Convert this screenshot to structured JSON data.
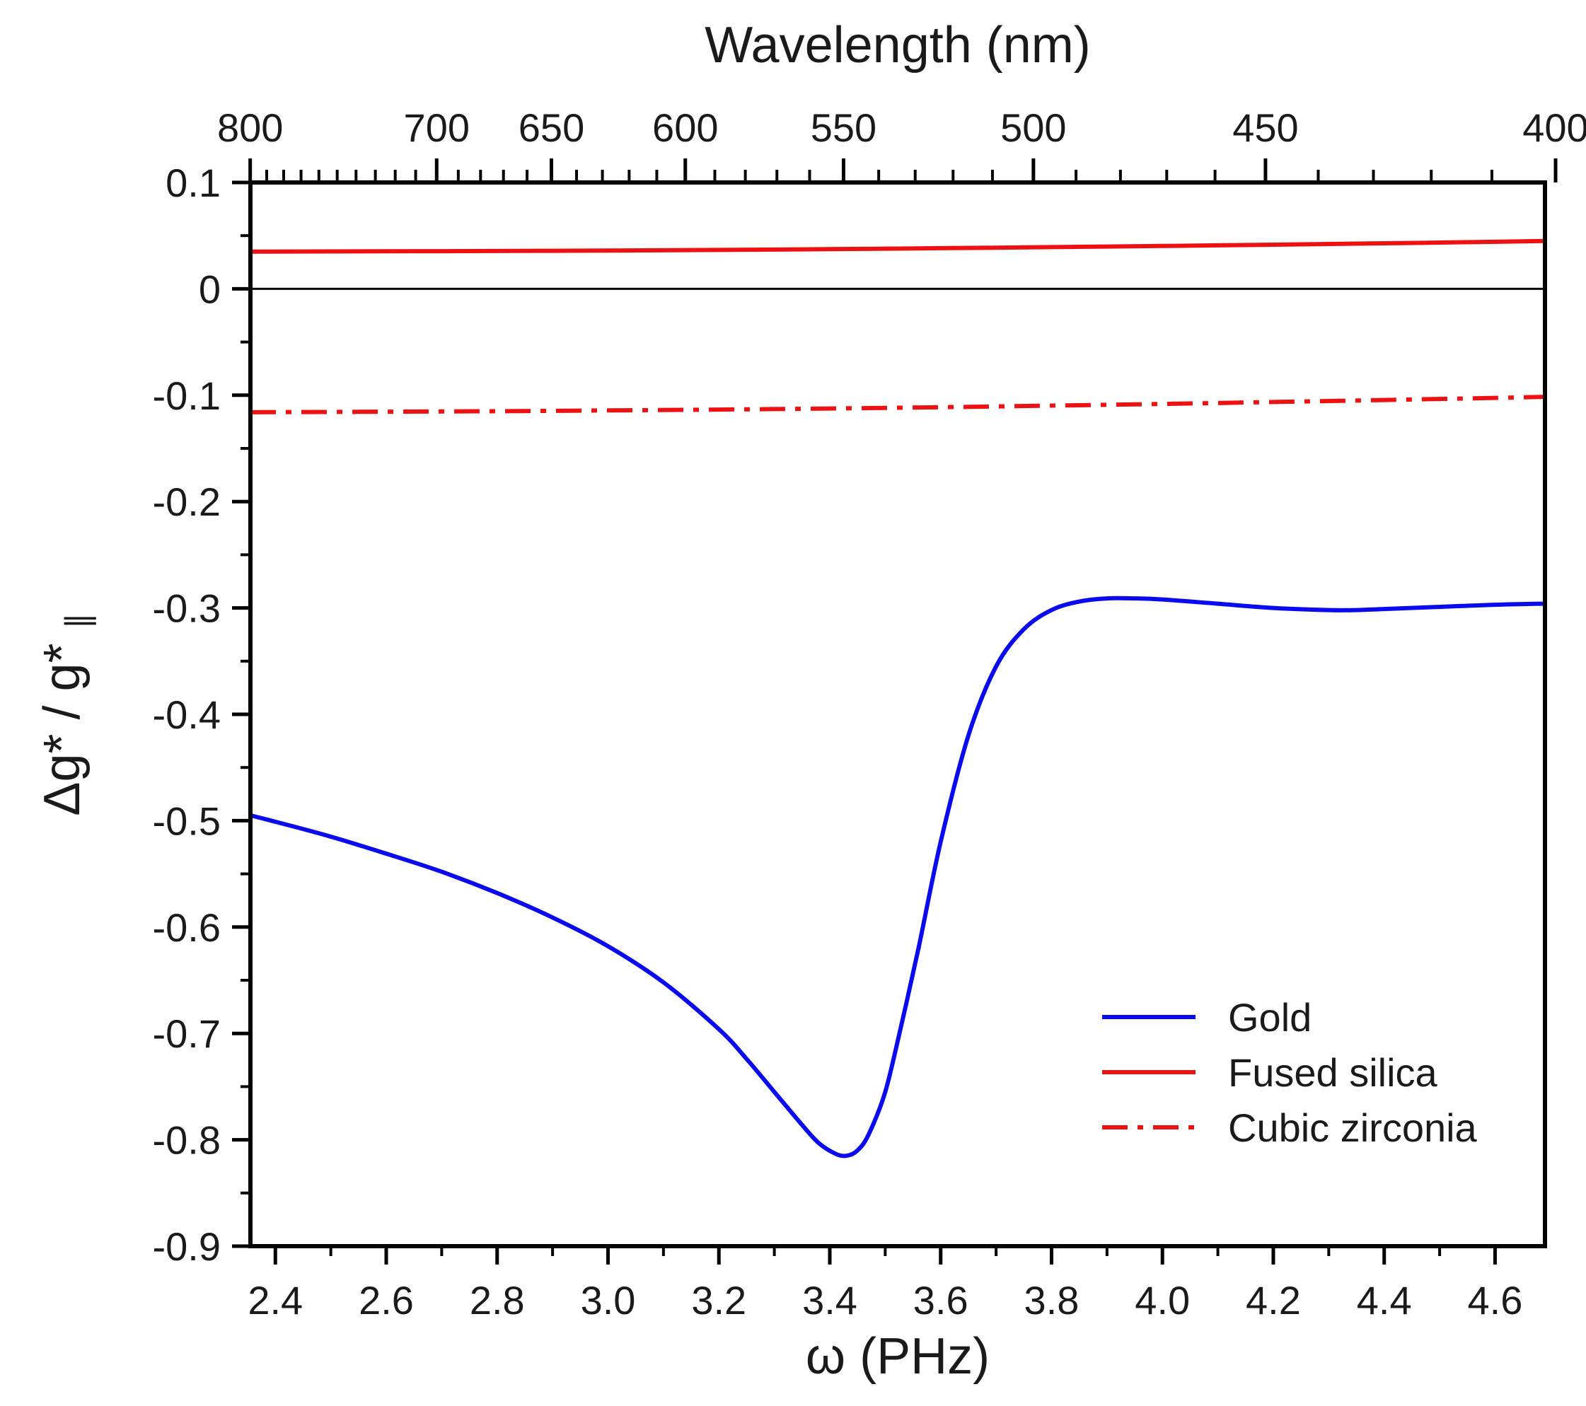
{
  "chart_data": {
    "type": "line",
    "title": "",
    "xlabel": "ω (PHz)",
    "ylabel": "Δg* / g*",
    "ylabel_subscript": "∥",
    "top_xlabel": "Wavelength (nm)",
    "xlim": [
      2.355,
      4.69
    ],
    "ylim": [
      -0.9,
      0.1
    ],
    "x_ticks": [
      "2.4",
      "2.6",
      "2.8",
      "3.0",
      "3.2",
      "3.4",
      "3.6",
      "3.8",
      "4.0",
      "4.2",
      "4.4",
      "4.6"
    ],
    "y_ticks": [
      "0.1",
      "0",
      "-0.1",
      "-0.2",
      "-0.3",
      "-0.4",
      "-0.5",
      "-0.6",
      "-0.7",
      "-0.8",
      "-0.9"
    ],
    "top_ticks": [
      "800",
      "700",
      "650",
      "600",
      "550",
      "500",
      "450",
      "400"
    ],
    "zero_line": true,
    "legend_position": "bottom-right",
    "series": [
      {
        "name": "Gold",
        "color": "#0a0aee",
        "style": "solid",
        "x": [
          2.355,
          2.4,
          2.5,
          2.6,
          2.7,
          2.8,
          2.9,
          3.0,
          3.1,
          3.2,
          3.25,
          3.3,
          3.35,
          3.38,
          3.41,
          3.43,
          3.45,
          3.47,
          3.5,
          3.53,
          3.56,
          3.6,
          3.65,
          3.7,
          3.75,
          3.8,
          3.85,
          3.9,
          3.95,
          4.0,
          4.1,
          4.2,
          4.3,
          4.35,
          4.4,
          4.5,
          4.6,
          4.69
        ],
        "y": [
          -0.495,
          -0.501,
          -0.515,
          -0.531,
          -0.548,
          -0.568,
          -0.591,
          -0.618,
          -0.652,
          -0.696,
          -0.724,
          -0.755,
          -0.786,
          -0.803,
          -0.813,
          -0.815,
          -0.81,
          -0.795,
          -0.755,
          -0.69,
          -0.62,
          -0.52,
          -0.42,
          -0.355,
          -0.32,
          -0.302,
          -0.294,
          -0.291,
          -0.291,
          -0.292,
          -0.296,
          -0.3,
          -0.302,
          -0.302,
          -0.301,
          -0.299,
          -0.297,
          -0.296
        ]
      },
      {
        "name": "Fused silica",
        "color": "#ee1111",
        "style": "solid",
        "x": [
          2.355,
          2.6,
          2.8,
          3.0,
          3.2,
          3.4,
          3.6,
          3.8,
          4.0,
          4.2,
          4.4,
          4.6,
          4.69
        ],
        "y": [
          0.035,
          0.0353,
          0.0356,
          0.036,
          0.0366,
          0.0373,
          0.0382,
          0.0392,
          0.0403,
          0.0415,
          0.0428,
          0.0442,
          0.045
        ]
      },
      {
        "name": "Cubic zirconia",
        "color": "#ee1111",
        "style": "dashdot",
        "x": [
          2.355,
          2.6,
          2.8,
          3.0,
          3.2,
          3.4,
          3.6,
          3.8,
          4.0,
          4.2,
          4.4,
          4.6,
          4.69
        ],
        "y": [
          -0.116,
          -0.1155,
          -0.115,
          -0.1143,
          -0.1135,
          -0.1125,
          -0.1113,
          -0.1098,
          -0.1082,
          -0.1064,
          -0.1045,
          -0.1025,
          -0.1015
        ]
      }
    ]
  }
}
